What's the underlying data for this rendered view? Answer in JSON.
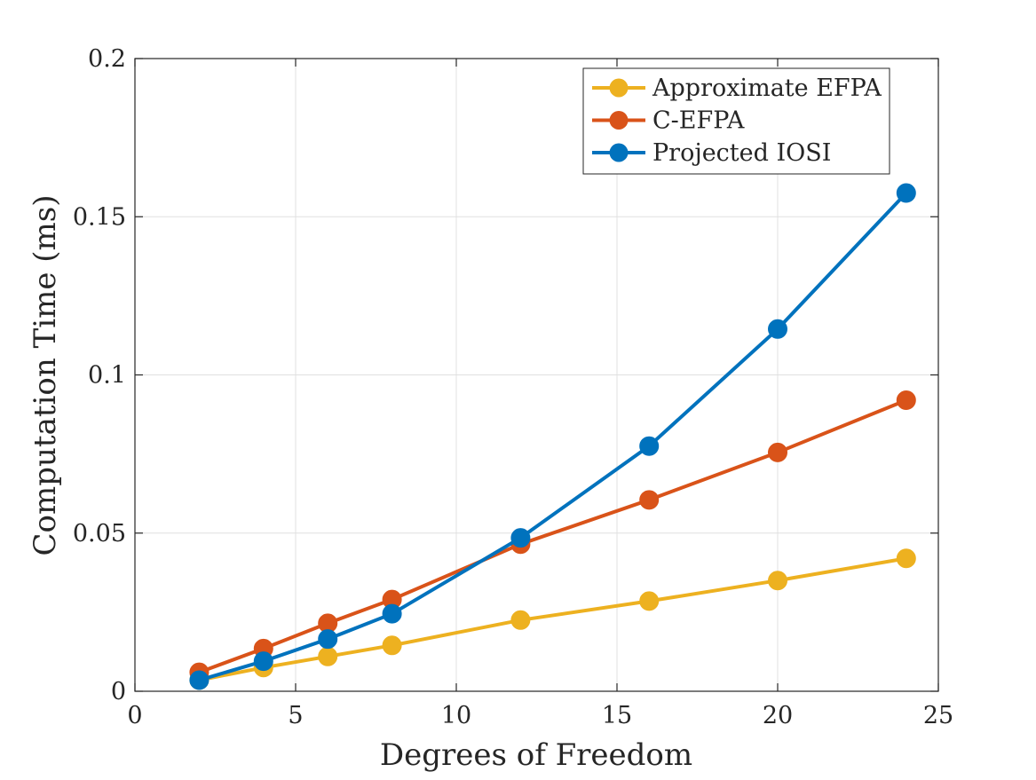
{
  "chart_data": {
    "type": "line",
    "title": "",
    "xlabel": "Degrees of Freedom",
    "ylabel": "Computation Time (ms)",
    "xlim": [
      0,
      25
    ],
    "ylim": [
      0,
      0.2
    ],
    "x_ticks": [
      0,
      5,
      10,
      15,
      20,
      25
    ],
    "x_tick_labels": [
      "0",
      "5",
      "10",
      "15",
      "20",
      "25"
    ],
    "y_ticks": [
      0,
      0.05,
      0.1,
      0.15,
      0.2
    ],
    "y_tick_labels": [
      "0",
      "0.05",
      "0.1",
      "0.15",
      "0.2"
    ],
    "grid": true,
    "legend_position": "top-right",
    "x": [
      2,
      4,
      6,
      8,
      12,
      16,
      20,
      24
    ],
    "series": [
      {
        "name": "Approximate EFPA",
        "color": "#EDB120",
        "values": [
          0.0035,
          0.0075,
          0.011,
          0.0145,
          0.0225,
          0.0285,
          0.035,
          0.042
        ]
      },
      {
        "name": "C-EFPA",
        "color": "#D95319",
        "values": [
          0.006,
          0.0135,
          0.0215,
          0.029,
          0.0465,
          0.0605,
          0.0755,
          0.092
        ]
      },
      {
        "name": "Projected IOSI",
        "color": "#0072BD",
        "values": [
          0.0035,
          0.0095,
          0.0165,
          0.0245,
          0.0485,
          0.0775,
          0.1145,
          0.1575
        ]
      }
    ]
  }
}
